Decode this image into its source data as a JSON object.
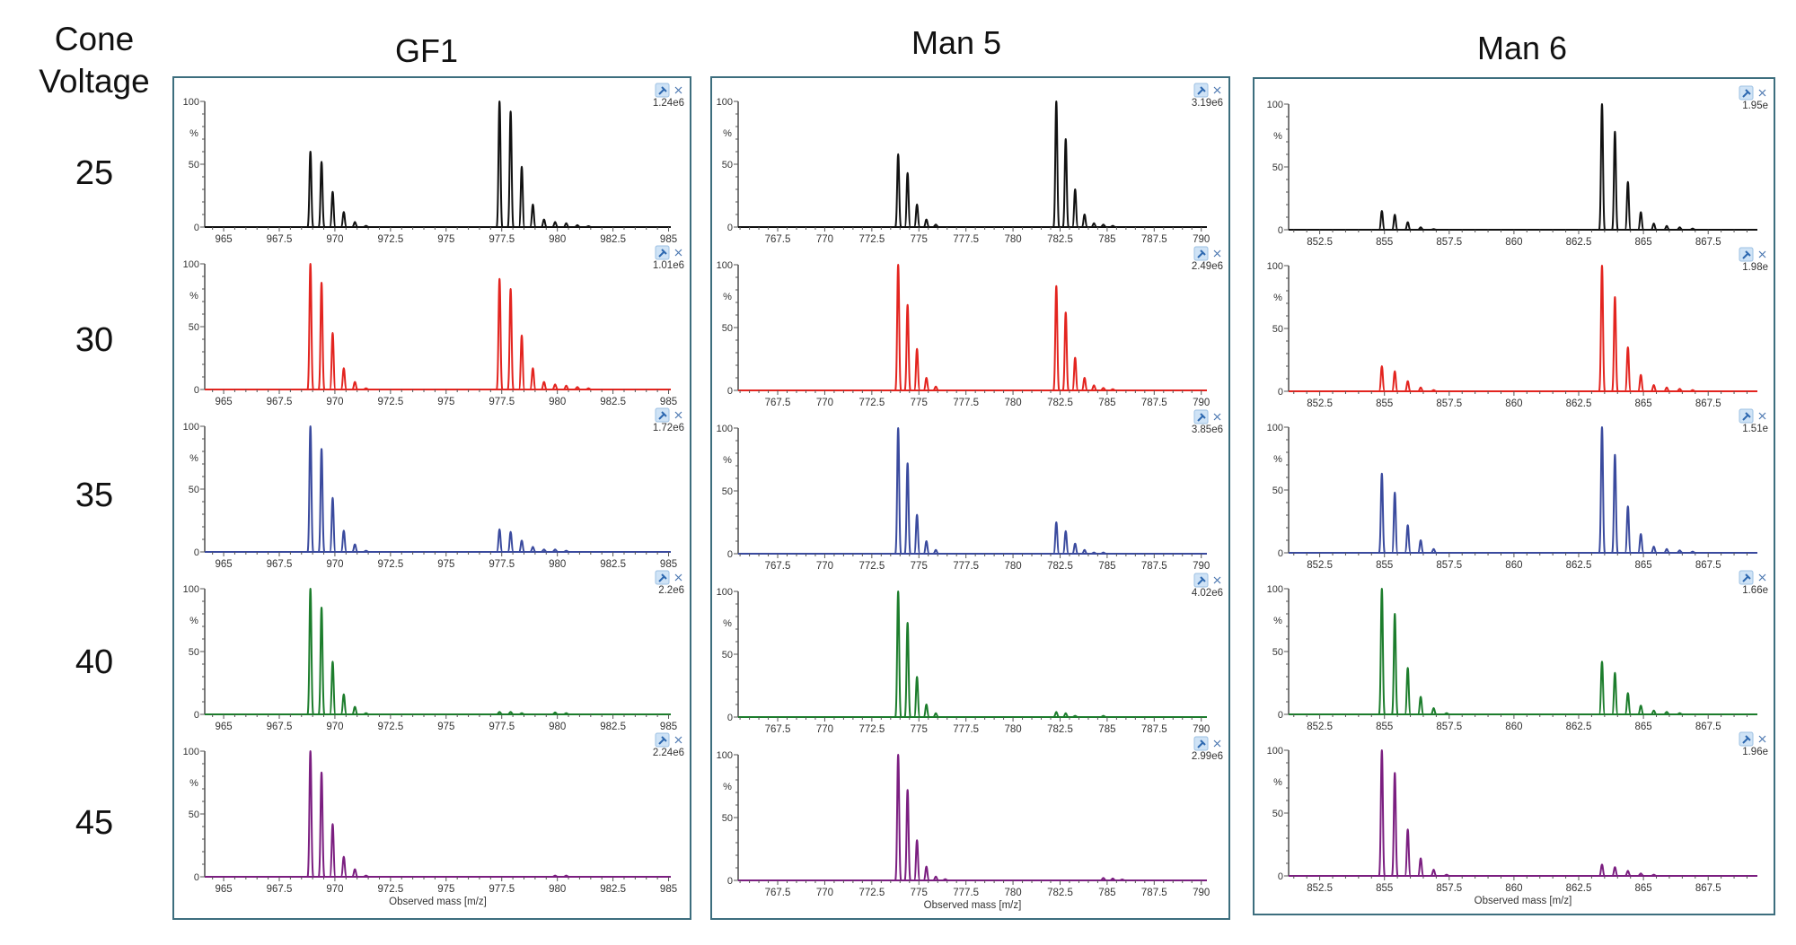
{
  "row_header": "Cone Voltage",
  "cone_voltages": [
    "25",
    "30",
    "35",
    "40",
    "45"
  ],
  "y_axis": {
    "ticks": [
      "0",
      "50",
      "100"
    ],
    "unit_label": "%"
  },
  "colors": {
    "25": "#111111",
    "30": "#e3241f",
    "35": "#3a4a9e",
    "40": "#1c7d2c",
    "45": "#7b1e80"
  },
  "icons": [
    "pin-icon",
    "close-icon"
  ],
  "chart_data": [
    {
      "type": "line",
      "title": "GF1",
      "xlabel": "Observed mass [m/z]",
      "xlim": [
        964.15,
        985.1
      ],
      "ylim": [
        0,
        100
      ],
      "xticks": [
        "965",
        "967.5",
        "970",
        "972.5",
        "975",
        "977.5",
        "980",
        "982.5",
        "985"
      ],
      "panels": [
        {
          "cone_voltage": "25",
          "max_intensity": "1.24e6",
          "peaks": [
            [
              968.9,
              60
            ],
            [
              969.4,
              52
            ],
            [
              969.9,
              28
            ],
            [
              970.4,
              12
            ],
            [
              970.9,
              4
            ],
            [
              971.4,
              1
            ],
            [
              977.4,
              100
            ],
            [
              977.9,
              92
            ],
            [
              978.4,
              48
            ],
            [
              978.9,
              18
            ],
            [
              979.4,
              6
            ],
            [
              979.9,
              4
            ],
            [
              980.4,
              3
            ],
            [
              980.9,
              1.5
            ],
            [
              981.4,
              0.7
            ]
          ]
        },
        {
          "cone_voltage": "30",
          "max_intensity": "1.01e6",
          "peaks": [
            [
              968.9,
              100
            ],
            [
              969.4,
              85
            ],
            [
              969.9,
              45
            ],
            [
              970.4,
              17
            ],
            [
              970.9,
              6
            ],
            [
              971.4,
              1
            ],
            [
              977.4,
              88
            ],
            [
              977.9,
              80
            ],
            [
              978.4,
              43
            ],
            [
              978.9,
              17
            ],
            [
              979.4,
              6
            ],
            [
              979.9,
              4
            ],
            [
              980.4,
              3
            ],
            [
              980.9,
              2
            ],
            [
              981.4,
              1
            ]
          ]
        },
        {
          "cone_voltage": "35",
          "max_intensity": "1.72e6",
          "peaks": [
            [
              968.9,
              100
            ],
            [
              969.4,
              82
            ],
            [
              969.9,
              43
            ],
            [
              970.4,
              17
            ],
            [
              970.9,
              6
            ],
            [
              971.4,
              1
            ],
            [
              977.4,
              18
            ],
            [
              977.9,
              16
            ],
            [
              978.4,
              9
            ],
            [
              978.9,
              4
            ],
            [
              979.4,
              2
            ],
            [
              979.9,
              2
            ],
            [
              980.4,
              1
            ]
          ]
        },
        {
          "cone_voltage": "40",
          "max_intensity": "2.2e6",
          "peaks": [
            [
              968.9,
              100
            ],
            [
              969.4,
              85
            ],
            [
              969.9,
              42
            ],
            [
              970.4,
              16
            ],
            [
              970.9,
              6
            ],
            [
              971.4,
              1
            ],
            [
              977.4,
              2
            ],
            [
              977.9,
              2
            ],
            [
              978.4,
              1
            ],
            [
              979.9,
              1.5
            ],
            [
              980.4,
              1
            ]
          ]
        },
        {
          "cone_voltage": "45",
          "max_intensity": "2.24e6",
          "peaks": [
            [
              968.9,
              100
            ],
            [
              969.4,
              83
            ],
            [
              969.9,
              42
            ],
            [
              970.4,
              16
            ],
            [
              970.9,
              6
            ],
            [
              971.4,
              1
            ],
            [
              979.9,
              1
            ],
            [
              980.4,
              1
            ]
          ]
        }
      ]
    },
    {
      "type": "line",
      "title": "Man 5",
      "xlabel": "Observed mass [m/z]",
      "xlim": [
        765.4,
        790.3
      ],
      "ylim": [
        0,
        100
      ],
      "xticks": [
        "767.5",
        "770",
        "772.5",
        "775",
        "777.5",
        "780",
        "782.5",
        "785",
        "787.5",
        "790"
      ],
      "panels": [
        {
          "cone_voltage": "25",
          "max_intensity": "3.19e6",
          "peaks": [
            [
              773.9,
              58
            ],
            [
              774.4,
              43
            ],
            [
              774.9,
              18
            ],
            [
              775.4,
              6
            ],
            [
              775.9,
              2
            ],
            [
              782.3,
              100
            ],
            [
              782.8,
              70
            ],
            [
              783.3,
              30
            ],
            [
              783.8,
              10
            ],
            [
              784.3,
              3
            ],
            [
              784.8,
              2
            ],
            [
              785.3,
              1
            ]
          ]
        },
        {
          "cone_voltage": "30",
          "max_intensity": "2.49e6",
          "peaks": [
            [
              773.9,
              100
            ],
            [
              774.4,
              68
            ],
            [
              774.9,
              33
            ],
            [
              775.4,
              10
            ],
            [
              775.9,
              3
            ],
            [
              782.3,
              83
            ],
            [
              782.8,
              62
            ],
            [
              783.3,
              26
            ],
            [
              783.8,
              10
            ],
            [
              784.3,
              4
            ],
            [
              784.8,
              2
            ],
            [
              785.3,
              1
            ]
          ]
        },
        {
          "cone_voltage": "35",
          "max_intensity": "3.85e6",
          "peaks": [
            [
              773.9,
              100
            ],
            [
              774.4,
              72
            ],
            [
              774.9,
              31
            ],
            [
              775.4,
              10
            ],
            [
              775.9,
              3
            ],
            [
              782.3,
              25
            ],
            [
              782.8,
              18
            ],
            [
              783.3,
              8
            ],
            [
              783.8,
              3
            ],
            [
              784.3,
              1
            ],
            [
              784.8,
              1
            ]
          ]
        },
        {
          "cone_voltage": "40",
          "max_intensity": "4.02e6",
          "peaks": [
            [
              773.9,
              100
            ],
            [
              774.4,
              75
            ],
            [
              774.9,
              32
            ],
            [
              775.4,
              10
            ],
            [
              775.9,
              3
            ],
            [
              782.3,
              4
            ],
            [
              782.8,
              3
            ],
            [
              783.3,
              1
            ],
            [
              784.8,
              1
            ]
          ]
        },
        {
          "cone_voltage": "45",
          "max_intensity": "2.99e6",
          "peaks": [
            [
              773.9,
              100
            ],
            [
              774.4,
              72
            ],
            [
              774.9,
              32
            ],
            [
              775.4,
              11
            ],
            [
              775.9,
              3
            ],
            [
              776.4,
              1
            ],
            [
              784.8,
              2
            ],
            [
              785.3,
              1.5
            ],
            [
              785.8,
              0.7
            ]
          ]
        }
      ]
    },
    {
      "type": "line",
      "title": "Man 6",
      "xlabel": "Observed mass [m/z]",
      "xlim": [
        851.3,
        869.4
      ],
      "ylim": [
        0,
        100
      ],
      "xticks": [
        "852.5",
        "855",
        "857.5",
        "860",
        "862.5",
        "865",
        "867.5"
      ],
      "panels": [
        {
          "cone_voltage": "25",
          "max_intensity": "1.95e",
          "peaks": [
            [
              854.9,
              15
            ],
            [
              855.4,
              12
            ],
            [
              855.9,
              6
            ],
            [
              856.4,
              2
            ],
            [
              856.9,
              0.5
            ],
            [
              863.4,
              100
            ],
            [
              863.9,
              78
            ],
            [
              864.4,
              38
            ],
            [
              864.9,
              14
            ],
            [
              865.4,
              5
            ],
            [
              865.9,
              3
            ],
            [
              866.4,
              2
            ],
            [
              866.9,
              1
            ]
          ]
        },
        {
          "cone_voltage": "30",
          "max_intensity": "1.98e",
          "peaks": [
            [
              854.9,
              20
            ],
            [
              855.4,
              16
            ],
            [
              855.9,
              8
            ],
            [
              856.4,
              3
            ],
            [
              856.9,
              1
            ],
            [
              863.4,
              100
            ],
            [
              863.9,
              75
            ],
            [
              864.4,
              35
            ],
            [
              864.9,
              13
            ],
            [
              865.4,
              5
            ],
            [
              865.9,
              3
            ],
            [
              866.4,
              2
            ],
            [
              866.9,
              1
            ]
          ]
        },
        {
          "cone_voltage": "35",
          "max_intensity": "1.51e",
          "peaks": [
            [
              854.9,
              63
            ],
            [
              855.4,
              48
            ],
            [
              855.9,
              22
            ],
            [
              856.4,
              10
            ],
            [
              856.9,
              3
            ],
            [
              863.4,
              100
            ],
            [
              863.9,
              78
            ],
            [
              864.4,
              37
            ],
            [
              864.9,
              15
            ],
            [
              865.4,
              5
            ],
            [
              865.9,
              3
            ],
            [
              866.4,
              2
            ],
            [
              866.9,
              1
            ]
          ]
        },
        {
          "cone_voltage": "40",
          "max_intensity": "1.66e",
          "peaks": [
            [
              854.9,
              100
            ],
            [
              855.4,
              80
            ],
            [
              855.9,
              37
            ],
            [
              856.4,
              14
            ],
            [
              856.9,
              5
            ],
            [
              857.4,
              1
            ],
            [
              863.4,
              42
            ],
            [
              863.9,
              33
            ],
            [
              864.4,
              17
            ],
            [
              864.9,
              7
            ],
            [
              865.4,
              3
            ],
            [
              865.9,
              2
            ],
            [
              866.4,
              1
            ]
          ]
        },
        {
          "cone_voltage": "45",
          "max_intensity": "1.96e",
          "peaks": [
            [
              854.9,
              100
            ],
            [
              855.4,
              82
            ],
            [
              855.9,
              37
            ],
            [
              856.4,
              14
            ],
            [
              856.9,
              5
            ],
            [
              857.4,
              1
            ],
            [
              863.4,
              9
            ],
            [
              863.9,
              7
            ],
            [
              864.4,
              4
            ],
            [
              864.9,
              2
            ],
            [
              865.4,
              1
            ]
          ]
        }
      ]
    }
  ]
}
